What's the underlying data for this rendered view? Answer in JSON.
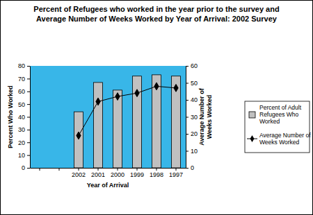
{
  "chart_data": {
    "type": "bar",
    "title": "Percent of Refugees who worked in the year prior to the survey and Average Number of Weeks Worked by Year of Arrival: 2002 Survey",
    "x_label": "Year of Arrival",
    "y_label": "Percent Who Worked",
    "y2_label": "Average Number of Weeks Worked",
    "categories": [
      null,
      null,
      "2002",
      "2001",
      "2000",
      "1999",
      "1998",
      "1997"
    ],
    "series": [
      {
        "name": "Percent of Adult Refugees Who Worked",
        "type": "bar",
        "color": "#c0c0c0",
        "values": [
          null,
          null,
          44,
          67,
          61,
          72,
          73,
          72
        ]
      },
      {
        "name": "Average Number of Weeks Worked",
        "type": "line",
        "axis": "y2",
        "color": "#000000",
        "marker": "diamond",
        "values": [
          null,
          null,
          19,
          39,
          42,
          44,
          48,
          47
        ]
      }
    ],
    "ylim": [
      0,
      80
    ],
    "yticks": [
      0,
      10,
      20,
      30,
      40,
      50,
      60,
      70,
      80
    ],
    "y2lim": [
      0,
      60
    ],
    "y2ticks": [
      0,
      10,
      20,
      30,
      40,
      50,
      60
    ],
    "grid": false,
    "legend": "right"
  }
}
